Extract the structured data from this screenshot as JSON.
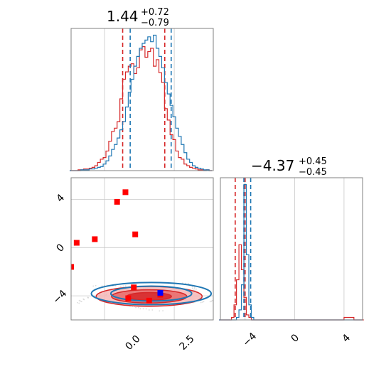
{
  "figure": {
    "type": "corner-plot",
    "colors": {
      "red": "#d62728",
      "blue": "#1f77b4",
      "marker_red": "#ff0000",
      "marker_blue": "#0000ff",
      "grid": "#c8c8c8",
      "axes": "#808080"
    }
  },
  "chart_data": [
    {
      "panel": "hist-param-1",
      "type": "histogram",
      "title_value": "1.44",
      "title_plus": "+0.72",
      "title_minus": "−0.79",
      "xlim": [
        -1.2,
        3.9
      ],
      "series": [
        {
          "color": "red",
          "quantiles": [
            0.65,
            2.16
          ],
          "centers": [
            -1.2,
            -1.1,
            -1.0,
            -0.9,
            -0.8,
            -0.7,
            -0.6,
            -0.5,
            -0.4,
            -0.3,
            -0.2,
            -0.1,
            0.0,
            0.1,
            0.2,
            0.3,
            0.4,
            0.5,
            0.6,
            0.7,
            0.8,
            0.9,
            1.0,
            1.1,
            1.2,
            1.3,
            1.4,
            1.5,
            1.6,
            1.7,
            1.8,
            1.9,
            2.0,
            2.1,
            2.2,
            2.3,
            2.4,
            2.5,
            2.6,
            2.7,
            2.8,
            2.9,
            3.0,
            3.1,
            3.2,
            3.3,
            3.4,
            3.5,
            3.6,
            3.7,
            3.8
          ],
          "counts": [
            0,
            0,
            0,
            1,
            1,
            2,
            2,
            3,
            4,
            6,
            10,
            14,
            16,
            24,
            36,
            48,
            52,
            60,
            88,
            112,
            121,
            128,
            131,
            119,
            126,
            148,
            152,
            139,
            146,
            150,
            128,
            136,
            120,
            108,
            76,
            62,
            44,
            38,
            24,
            16,
            14,
            8,
            6,
            4,
            3,
            2,
            1,
            1,
            0,
            1,
            0
          ]
        },
        {
          "color": "blue",
          "quantiles": [
            0.92,
            2.39
          ],
          "centers": [
            -1.2,
            -1.1,
            -1.0,
            -0.9,
            -0.8,
            -0.7,
            -0.6,
            -0.5,
            -0.4,
            -0.3,
            -0.2,
            -0.1,
            0.0,
            0.1,
            0.2,
            0.3,
            0.4,
            0.5,
            0.6,
            0.7,
            0.8,
            0.9,
            1.0,
            1.1,
            1.2,
            1.3,
            1.4,
            1.5,
            1.6,
            1.7,
            1.8,
            1.9,
            2.0,
            2.1,
            2.2,
            2.3,
            2.4,
            2.5,
            2.6,
            2.7,
            2.8,
            2.9,
            3.0,
            3.1,
            3.2,
            3.3,
            3.4,
            3.5,
            3.6,
            3.7,
            3.8
          ],
          "counts": [
            0,
            0,
            0,
            0,
            1,
            1,
            1,
            2,
            2,
            3,
            4,
            5,
            8,
            12,
            18,
            26,
            32,
            40,
            50,
            60,
            78,
            96,
            112,
            128,
            140,
            150,
            156,
            160,
            164,
            158,
            166,
            150,
            140,
            126,
            108,
            94,
            80,
            66,
            52,
            42,
            32,
            22,
            14,
            10,
            6,
            4,
            3,
            2,
            1,
            1,
            0
          ]
        }
      ]
    },
    {
      "panel": "hist-param-2",
      "type": "histogram",
      "title_value": "−4.37",
      "title_plus": "+0.45",
      "title_minus": "−0.45",
      "xlim": [
        -6.0,
        5.5
      ],
      "xticks": [
        "−4",
        "0",
        "4"
      ],
      "series": [
        {
          "color": "red",
          "quantiles": [
            -4.8,
            -4.0
          ],
          "centers": [
            -6.0,
            -5.8,
            -5.6,
            -5.4,
            -5.2,
            -5.0,
            -4.8,
            -4.6,
            -4.4,
            -4.2,
            -4.0,
            -3.8,
            -3.6,
            -3.4,
            -3.2,
            -3.0,
            -2.0,
            0.0,
            2.0,
            3.8,
            4.2,
            4.6,
            5.0,
            5.4
          ],
          "counts": [
            0,
            0,
            0,
            0,
            0,
            1,
            6,
            16,
            30,
            20,
            9,
            2,
            1,
            0,
            0,
            0,
            0,
            0,
            0,
            0,
            1,
            1,
            0,
            0
          ]
        },
        {
          "color": "blue",
          "quantiles": [
            -4.1,
            -3.55
          ],
          "centers": [
            -6.0,
            -5.8,
            -5.6,
            -5.4,
            -5.2,
            -5.0,
            -4.8,
            -4.6,
            -4.4,
            -4.2,
            -4.0,
            -3.8,
            -3.6,
            -3.4,
            -3.2,
            -3.0,
            -2.0,
            0.0,
            2.0,
            4.0,
            5.0
          ],
          "counts": [
            0,
            0,
            0,
            0,
            0,
            0,
            0,
            1,
            4,
            14,
            54,
            26,
            6,
            1,
            0,
            0,
            0,
            0,
            0,
            0,
            0
          ]
        }
      ]
    },
    {
      "panel": "joint",
      "type": "scatter",
      "xlim": [
        -1.2,
        3.9
      ],
      "ylim": [
        -6.0,
        5.8
      ],
      "xticks": [
        "0.0",
        "2.5"
      ],
      "yticks": [
        "4",
        "0",
        "−4"
      ],
      "red_markers": [
        [
          -1.2,
          -1.6
        ],
        [
          -1.0,
          0.4
        ],
        [
          -0.35,
          0.7
        ],
        [
          0.45,
          3.8
        ],
        [
          0.75,
          4.6
        ],
        [
          1.1,
          1.1
        ],
        [
          0.85,
          -4.2
        ],
        [
          1.05,
          -3.3
        ],
        [
          1.6,
          -4.4
        ],
        [
          2.0,
          -3.9
        ]
      ],
      "blue_markers": [
        [
          2.0,
          -3.75
        ]
      ],
      "contours": {
        "center": [
          1.6,
          -4.05
        ],
        "red": [
          {
            "rx": 1.9,
            "ry": 0.82,
            "level": 3
          },
          {
            "rx": 1.35,
            "ry": 0.55,
            "level": 2
          },
          {
            "rx": 0.8,
            "ry": 0.32,
            "level": 1
          }
        ],
        "blue": [
          {
            "rx": 2.15,
            "ry": 0.92
          },
          {
            "rx": 1.45,
            "ry": 0.62
          }
        ]
      }
    }
  ]
}
